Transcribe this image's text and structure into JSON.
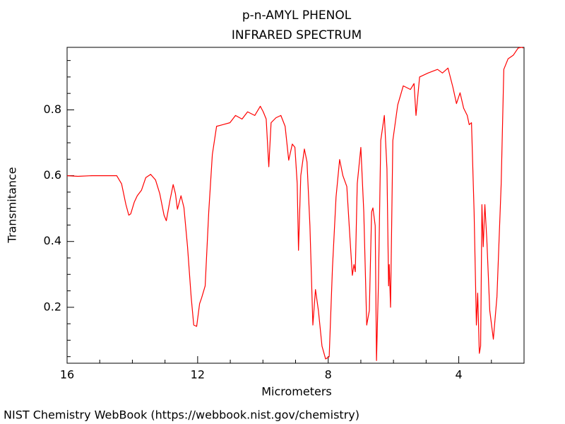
{
  "chart_data": {
    "type": "line",
    "title": "p-n-AMYL PHENOL",
    "subtitle": "INFRARED SPECTRUM",
    "x_label": "Micrometers",
    "y_label": "Transmitance",
    "source": "NIST Chemistry WebBook (https://webbook.nist.gov/chemistry)",
    "color": "#ff0000",
    "xlim": [
      16,
      2
    ],
    "ylim": [
      0.03,
      0.99
    ],
    "xticks": [
      16,
      12,
      8,
      4
    ],
    "yticks": [
      0.2,
      0.4,
      0.6,
      0.8
    ],
    "xminorticks": [
      15,
      14,
      13,
      11,
      10,
      9,
      7,
      6,
      5,
      3
    ],
    "yminorticks": [
      0.05,
      0.1,
      0.15,
      0.25,
      0.3,
      0.35,
      0.45,
      0.5,
      0.55,
      0.65,
      0.7,
      0.75,
      0.85,
      0.9,
      0.95
    ],
    "grid": false,
    "x": [
      16,
      15.67,
      15.24,
      15.0,
      14.48,
      14.33,
      14.2,
      14.11,
      14.05,
      13.94,
      13.85,
      13.72,
      13.59,
      13.44,
      13.29,
      13.16,
      13.03,
      12.96,
      12.85,
      12.75,
      12.68,
      12.62,
      12.51,
      12.42,
      12.31,
      12.2,
      12.12,
      12.03,
      11.94,
      11.88,
      11.77,
      11.66,
      11.55,
      11.42,
      11.23,
      11.01,
      10.84,
      10.64,
      10.47,
      10.25,
      10.08,
      9.99,
      9.9,
      9.82,
      9.75,
      9.6,
      9.45,
      9.32,
      9.21,
      9.1,
      9.02,
      8.95,
      8.91,
      8.84,
      8.73,
      8.65,
      8.56,
      8.47,
      8.39,
      8.3,
      8.19,
      8.08,
      7.97,
      7.87,
      7.76,
      7.65,
      7.55,
      7.43,
      7.33,
      7.26,
      7.21,
      7.17,
      7.11,
      7.0,
      6.91,
      6.82,
      6.74,
      6.67,
      6.63,
      6.56,
      6.52,
      6.46,
      6.39,
      6.28,
      6.2,
      6.15,
      6.13,
      6.09,
      6.02,
      5.87,
      5.7,
      5.48,
      5.37,
      5.31,
      5.2,
      4.94,
      4.65,
      4.5,
      4.33,
      4.18,
      4.07,
      3.96,
      3.85,
      3.74,
      3.68,
      3.61,
      3.53,
      3.46,
      3.42,
      3.37,
      3.33,
      3.29,
      3.25,
      3.2,
      3.14,
      3.05,
      2.94,
      2.83,
      2.7,
      2.62,
      2.49,
      2.33,
      2.18,
      2.07,
      2.02
    ],
    "values": [
      0.6,
      0.598,
      0.6,
      0.6,
      0.6,
      0.575,
      0.513,
      0.48,
      0.484,
      0.52,
      0.539,
      0.556,
      0.594,
      0.604,
      0.587,
      0.545,
      0.48,
      0.463,
      0.524,
      0.573,
      0.545,
      0.498,
      0.539,
      0.503,
      0.384,
      0.233,
      0.146,
      0.142,
      0.211,
      0.228,
      0.265,
      0.49,
      0.664,
      0.75,
      0.755,
      0.761,
      0.783,
      0.772,
      0.794,
      0.783,
      0.811,
      0.794,
      0.772,
      0.627,
      0.761,
      0.776,
      0.783,
      0.75,
      0.647,
      0.696,
      0.686,
      0.576,
      0.373,
      0.6,
      0.681,
      0.642,
      0.448,
      0.146,
      0.254,
      0.19,
      0.082,
      0.043,
      0.05,
      0.319,
      0.535,
      0.649,
      0.6,
      0.567,
      0.405,
      0.297,
      0.33,
      0.308,
      0.576,
      0.686,
      0.49,
      0.146,
      0.19,
      0.49,
      0.502,
      0.448,
      0.038,
      0.276,
      0.707,
      0.783,
      0.621,
      0.265,
      0.33,
      0.2,
      0.707,
      0.815,
      0.873,
      0.862,
      0.88,
      0.783,
      0.9,
      0.912,
      0.923,
      0.912,
      0.927,
      0.869,
      0.819,
      0.852,
      0.805,
      0.783,
      0.755,
      0.761,
      0.49,
      0.146,
      0.243,
      0.06,
      0.082,
      0.512,
      0.384,
      0.512,
      0.405,
      0.19,
      0.103,
      0.232,
      0.576,
      0.923,
      0.955,
      0.966,
      0.988,
      0.99,
      0.988
    ]
  }
}
